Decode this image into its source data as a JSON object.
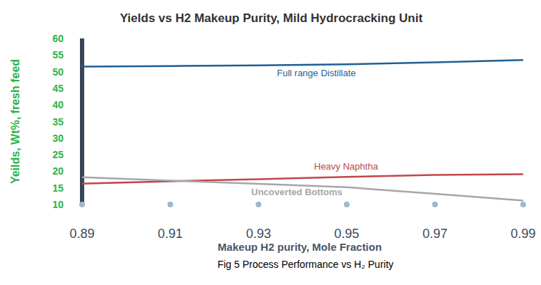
{
  "chart_data": {
    "type": "line",
    "title": "Yields vs H2 Makeup Purity, Mild Hydrocracking Unit",
    "x_label": "Makeup H2 purity, Mole Fraction",
    "y_label": "Yeilds, Wt%, fresh feed",
    "caption": "Fig 5 Process Performance vs H₂ Purity",
    "x": [
      0.89,
      0.91,
      0.93,
      0.95,
      0.97,
      0.99
    ],
    "series": [
      {
        "name": "Full range Distillate",
        "color": "#1f5f94",
        "values": [
          51.5,
          51.7,
          51.9,
          52.2,
          52.8,
          53.5
        ]
      },
      {
        "name": "Heavy Naphtha",
        "color": "#c0474a",
        "values": [
          16.3,
          17.0,
          17.6,
          18.3,
          18.9,
          19.1
        ]
      },
      {
        "name": "Uncoverted Bottoms",
        "color": "#a6a6a6",
        "values": [
          18.2,
          17.2,
          16.2,
          15.2,
          13.2,
          11.2
        ]
      }
    ],
    "xlim": [
      0.89,
      0.99
    ],
    "xticks": [
      0.89,
      0.91,
      0.93,
      0.95,
      0.97,
      0.99
    ],
    "ylim": [
      10,
      60
    ],
    "yticks": [
      10,
      15,
      20,
      25,
      30,
      35,
      40,
      45,
      50,
      55,
      60
    ],
    "grid": false
  }
}
